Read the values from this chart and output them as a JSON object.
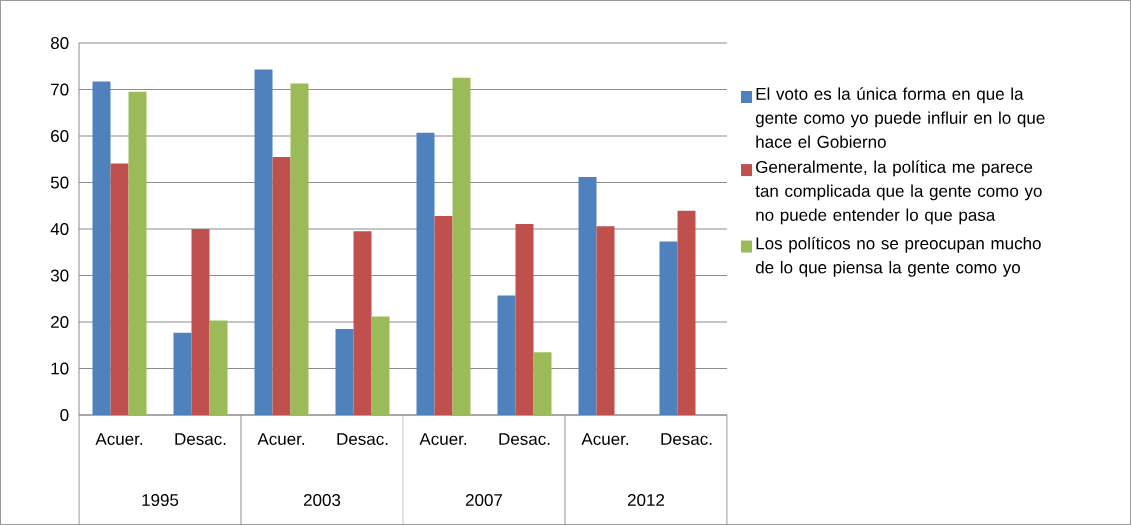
{
  "chart_data": {
    "type": "bar",
    "categories": [
      "Acuer.",
      "Desac.",
      "Acuer.",
      "Desac.",
      "Acuer.",
      "Desac.",
      "Acuer.",
      "Desac."
    ],
    "annotations": [
      "1995",
      "2003",
      "2007",
      "2012"
    ],
    "series": [
      {
        "name": "El voto es la única forma en que la gente como yo puede influir en lo que hace el Gobierno",
        "color": "#4f81bd",
        "values": [
          71.7,
          17.7,
          74.3,
          18.5,
          60.7,
          25.7,
          51.2,
          37.3
        ]
      },
      {
        "name": "Generalmente, la política me parece tan complicada que la gente como yo no puede entender lo que pasa",
        "color": "#c0504d",
        "values": [
          54.1,
          40,
          55.5,
          39.5,
          42.8,
          41.1,
          40.6,
          43.9
        ]
      },
      {
        "name": "Los políticos no se preocupan mucho de lo que piensa la gente como yo",
        "color": "#9bbb59",
        "values": [
          69.5,
          20.3,
          71.3,
          21.2,
          72.5,
          13.5,
          null,
          null
        ]
      }
    ],
    "ylim": [
      0,
      80
    ],
    "yticks": [
      0,
      10,
      20,
      30,
      40,
      50,
      60,
      70,
      80
    ],
    "grid": "y",
    "legend": "right"
  }
}
